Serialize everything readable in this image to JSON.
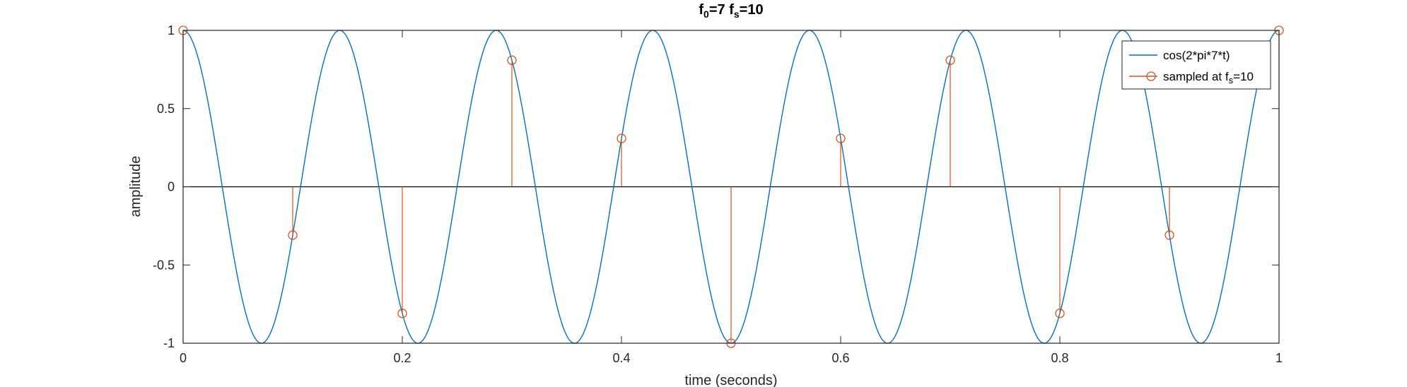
{
  "chart_data": {
    "type": "line",
    "title": {
      "main": "f",
      "sub1": "0",
      "mid": "=7 f",
      "sub2": "s",
      "end": "=10"
    },
    "xlabel": "time (seconds)",
    "ylabel": "amplitude",
    "xlim": [
      0,
      1
    ],
    "ylim": [
      -1,
      1
    ],
    "xticks": [
      0,
      0.2,
      0.4,
      0.6,
      0.8,
      1
    ],
    "xtick_labels": [
      "0",
      "0.2",
      "0.4",
      "0.6",
      "0.8",
      "1"
    ],
    "yticks": [
      -1,
      -0.5,
      0,
      0.5,
      1
    ],
    "ytick_labels": [
      "-1",
      "-0.5",
      "0",
      "0.5",
      "1"
    ],
    "grid": false,
    "legend_position": "top-right",
    "series": [
      {
        "name": "cos(2*pi*7*t)",
        "kind": "line",
        "color": "#0072BD",
        "frequency": 7
      },
      {
        "name_main": "sampled at f",
        "name_sub": "s",
        "name_end": "=10",
        "kind": "stem",
        "color": "#D95319",
        "x": [
          0,
          0.1,
          0.2,
          0.3,
          0.4,
          0.5,
          0.6,
          0.7,
          0.8,
          0.9,
          1.0
        ],
        "y": [
          1,
          -0.309,
          -0.809,
          0.809,
          0.309,
          -1,
          0.309,
          0.809,
          -0.809,
          -0.309,
          1
        ]
      }
    ]
  }
}
